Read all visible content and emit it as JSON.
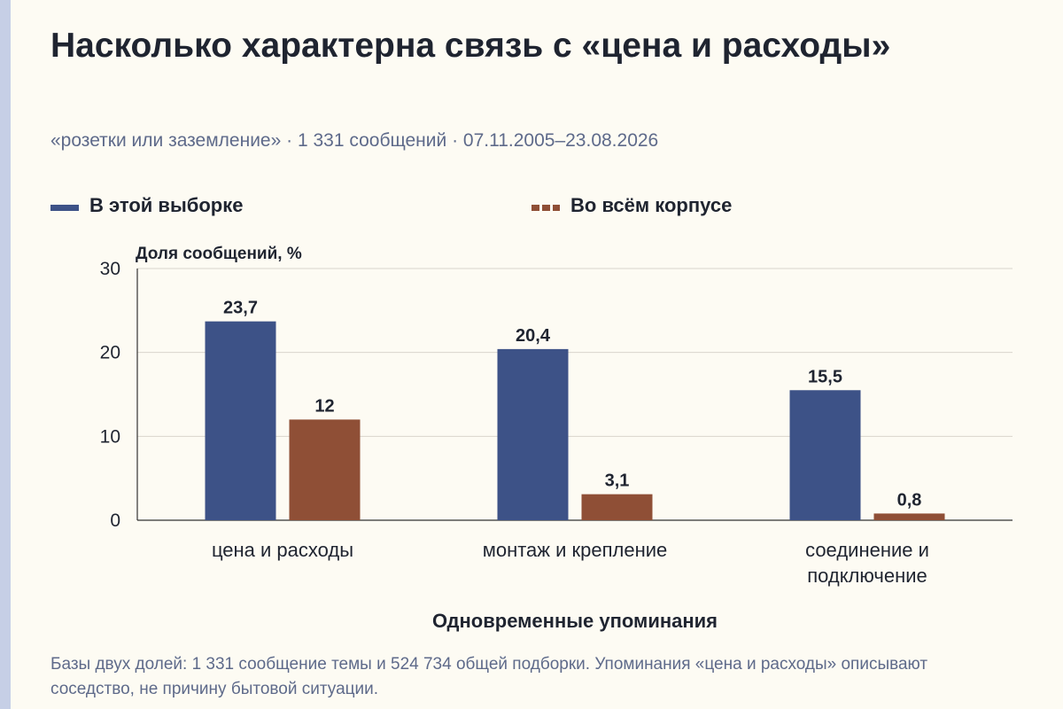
{
  "title": "Насколько характерна связь с «цена и расходы»",
  "subtitle": "«розетки или заземление» · 1 331 сообщений · 07.11.2005–23.08.2026",
  "footnote": "Базы двух долей: 1 331 сообщение темы и 524 734 общей подборки. Упоминания «цена и расходы» описывают соседство, не причину бытовой ситуации.",
  "colors": {
    "series_a": "#3d5287",
    "series_b": "#8f4f36",
    "background": "#fdfbf3",
    "stripe": "#c6cfe6"
  },
  "chart_data": {
    "type": "bar",
    "ylabel": "Доля сообщений, %",
    "xlabel": "Одновременные упоминания",
    "ylim": [
      0,
      30
    ],
    "yticks": [
      "0",
      "10",
      "20",
      "30"
    ],
    "grid": true,
    "legend_placement": "top",
    "categories": [
      [
        "цена и расходы"
      ],
      [
        "монтаж и крепление"
      ],
      [
        "соединение и",
        "подключение"
      ]
    ],
    "series": [
      {
        "name": "В этой выборке",
        "values": [
          23.7,
          20.4,
          15.5
        ],
        "labels": [
          "23,7",
          "20,4",
          "15,5"
        ]
      },
      {
        "name": "Во всём корпусе",
        "values": [
          12,
          3.1,
          0.8
        ],
        "labels": [
          "12",
          "3,1",
          "0,8"
        ]
      }
    ]
  }
}
